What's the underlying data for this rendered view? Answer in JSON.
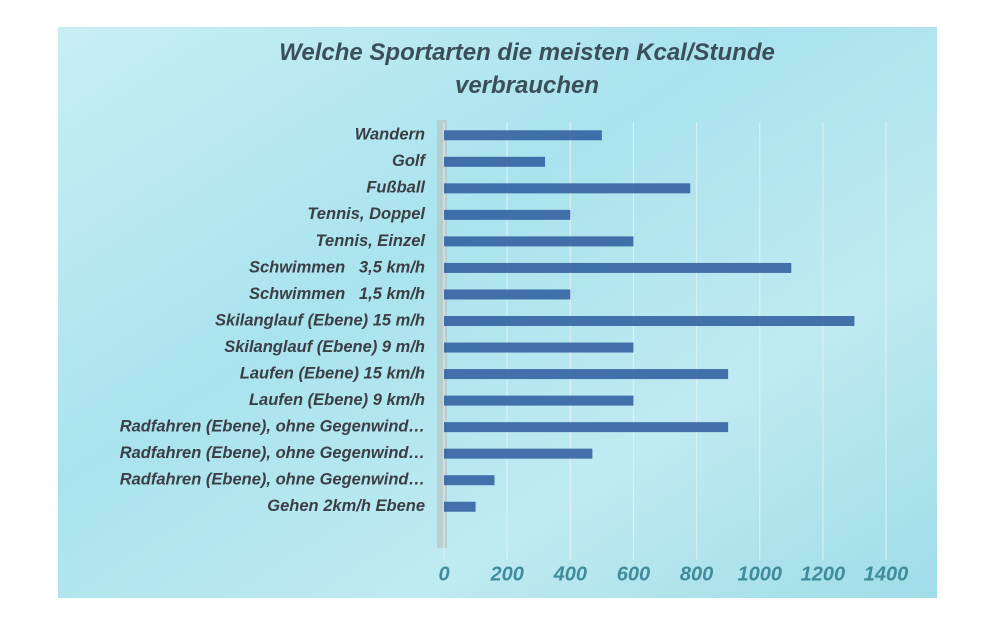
{
  "chart_data": {
    "type": "bar",
    "orientation": "horizontal",
    "title": "Welche Sportarten die meisten Kcal/Stunde verbrauchen",
    "categories": [
      "Wandern",
      "Golf",
      "Fußball",
      "Tennis, Doppel",
      "Tennis, Einzel",
      "Schwimmen   3,5 km/h",
      "Schwimmen   1,5 km/h",
      "Skilanglauf (Ebene) 15 m/h",
      "Skilanglauf (Ebene) 9 m/h",
      "Laufen (Ebene) 15 km/h",
      "Laufen (Ebene) 9 km/h",
      "Radfahren (Ebene), ohne Gegenwind…",
      "Radfahren (Ebene), ohne Gegenwind…",
      "Radfahren (Ebene), ohne Gegenwind…",
      "Gehen 2km/h Ebene"
    ],
    "values": [
      500,
      320,
      780,
      400,
      600,
      1100,
      400,
      1300,
      600,
      900,
      600,
      900,
      470,
      160,
      100
    ],
    "color": "#2d5b9e",
    "xlim": [
      0,
      1400
    ],
    "xticks": [
      0,
      200,
      400,
      600,
      800,
      1000,
      1200,
      1400
    ],
    "grid": true
  }
}
